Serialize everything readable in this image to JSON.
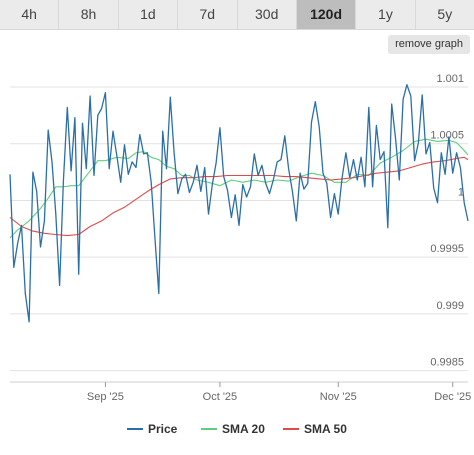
{
  "range_tabs": [
    {
      "label": "4h"
    },
    {
      "label": "8h"
    },
    {
      "label": "1d"
    },
    {
      "label": "7d"
    },
    {
      "label": "30d"
    },
    {
      "label": "120d"
    },
    {
      "label": "1y"
    },
    {
      "label": "5y"
    }
  ],
  "active_tab": "120d",
  "remove_graph_label": "remove graph",
  "chart_data": {
    "type": "line",
    "title": "",
    "xlabel": "",
    "ylabel": "",
    "ylim": [
      0.9984,
      1.00122
    ],
    "y_ticks": [
      {
        "value": 1.001,
        "label": "1.001"
      },
      {
        "value": 1.0005,
        "label": "1.0005"
      },
      {
        "value": 1.0,
        "label": "1"
      },
      {
        "value": 0.9995,
        "label": "0.9995"
      },
      {
        "value": 0.999,
        "label": "0.999"
      },
      {
        "value": 0.9985,
        "label": "0.9985"
      }
    ],
    "x_range": [
      "2025-08-07",
      "2025-12-05"
    ],
    "x_ticks": [
      {
        "date": "2025-09-01",
        "label": "Sep '25"
      },
      {
        "date": "2025-10-01",
        "label": "Oct '25"
      },
      {
        "date": "2025-11-01",
        "label": "Nov '25"
      },
      {
        "date": "2025-12-01",
        "label": "Dec '25"
      }
    ],
    "grid": true,
    "legend_position": "bottom",
    "series": [
      {
        "name": "Price",
        "color": "#2a6fa8",
        "points": [
          [
            "2025-08-07",
            1.00023
          ],
          [
            "2025-08-08",
            0.99941
          ],
          [
            "2025-08-09",
            0.99962
          ],
          [
            "2025-08-10",
            0.99978
          ],
          [
            "2025-08-11",
            0.99918
          ],
          [
            "2025-08-12",
            0.99893
          ],
          [
            "2025-08-13",
            1.00025
          ],
          [
            "2025-08-14",
            1.00008
          ],
          [
            "2025-08-15",
            0.99959
          ],
          [
            "2025-08-16",
            0.99982
          ],
          [
            "2025-08-17",
            1.00062
          ],
          [
            "2025-08-18",
            1.00034
          ],
          [
            "2025-08-19",
            0.99988
          ],
          [
            "2025-08-20",
            0.99925
          ],
          [
            "2025-08-21",
            1.00017
          ],
          [
            "2025-08-22",
            1.00082
          ],
          [
            "2025-08-23",
            1.00026
          ],
          [
            "2025-08-24",
            1.00073
          ],
          [
            "2025-08-25",
            0.99935
          ],
          [
            "2025-08-26",
            1.00068
          ],
          [
            "2025-08-27",
            1.00028
          ],
          [
            "2025-08-28",
            1.00092
          ],
          [
            "2025-08-29",
            1.00022
          ],
          [
            "2025-08-30",
            1.00075
          ],
          [
            "2025-08-31",
            1.00081
          ],
          [
            "2025-09-01",
            1.00095
          ],
          [
            "2025-09-02",
            1.00028
          ],
          [
            "2025-09-03",
            1.00061
          ],
          [
            "2025-09-04",
            1.00039
          ],
          [
            "2025-09-05",
            1.00016
          ],
          [
            "2025-09-06",
            1.00049
          ],
          [
            "2025-09-07",
            1.00023
          ],
          [
            "2025-09-08",
            1.00034
          ],
          [
            "2025-09-09",
            1.00029
          ],
          [
            "2025-09-10",
            1.00058
          ],
          [
            "2025-09-11",
            1.00041
          ],
          [
            "2025-09-12",
            1.00042
          ],
          [
            "2025-09-13",
            1.00016
          ],
          [
            "2025-09-14",
            0.99966
          ],
          [
            "2025-09-15",
            0.99918
          ],
          [
            "2025-09-16",
            1.00061
          ],
          [
            "2025-09-17",
            1.00028
          ],
          [
            "2025-09-18",
            1.00091
          ],
          [
            "2025-09-19",
            1.00042
          ],
          [
            "2025-09-20",
            1.00006
          ],
          [
            "2025-09-21",
            1.00019
          ],
          [
            "2025-09-22",
            1.00023
          ],
          [
            "2025-09-23",
            1.00007
          ],
          [
            "2025-09-24",
            1.00016
          ],
          [
            "2025-09-25",
            1.00031
          ],
          [
            "2025-09-26",
            1.00008
          ],
          [
            "2025-09-27",
            1.00029
          ],
          [
            "2025-09-28",
            0.99988
          ],
          [
            "2025-09-29",
            1.00014
          ],
          [
            "2025-09-30",
            1.00033
          ],
          [
            "2025-10-01",
            1.00064
          ],
          [
            "2025-10-02",
            1.00021
          ],
          [
            "2025-10-03",
            1.00009
          ],
          [
            "2025-10-04",
            0.99985
          ],
          [
            "2025-10-05",
            1.00005
          ],
          [
            "2025-10-06",
            0.99978
          ],
          [
            "2025-10-07",
            1.00014
          ],
          [
            "2025-10-08",
            1.00003
          ],
          [
            "2025-10-09",
            1.00012
          ],
          [
            "2025-10-10",
            1.00041
          ],
          [
            "2025-10-11",
            1.00022
          ],
          [
            "2025-10-12",
            1.00031
          ],
          [
            "2025-10-13",
            1.00015
          ],
          [
            "2025-10-14",
            1.00006
          ],
          [
            "2025-10-15",
            1.00018
          ],
          [
            "2025-10-16",
            1.00034
          ],
          [
            "2025-10-17",
            1.00036
          ],
          [
            "2025-10-18",
            1.00057
          ],
          [
            "2025-10-19",
            1.00028
          ],
          [
            "2025-10-20",
            1.00008
          ],
          [
            "2025-10-21",
            0.99982
          ],
          [
            "2025-10-22",
            1.00024
          ],
          [
            "2025-10-23",
            1.0001
          ],
          [
            "2025-10-24",
            1.00015
          ],
          [
            "2025-10-25",
            1.00069
          ],
          [
            "2025-10-26",
            1.00087
          ],
          [
            "2025-10-27",
            1.00065
          ],
          [
            "2025-10-28",
            1.00024
          ],
          [
            "2025-10-29",
            1.00015
          ],
          [
            "2025-10-30",
            0.99985
          ],
          [
            "2025-10-31",
            1.00006
          ],
          [
            "2025-11-01",
            0.99988
          ],
          [
            "2025-11-02",
            1.0002
          ],
          [
            "2025-11-03",
            1.00042
          ],
          [
            "2025-11-04",
            1.0002
          ],
          [
            "2025-11-05",
            1.00036
          ],
          [
            "2025-11-06",
            1.00018
          ],
          [
            "2025-11-07",
            1.00038
          ],
          [
            "2025-11-08",
            1.00012
          ],
          [
            "2025-11-09",
            1.00082
          ],
          [
            "2025-11-10",
            1.00012
          ],
          [
            "2025-11-11",
            1.00066
          ],
          [
            "2025-11-12",
            1.00036
          ],
          [
            "2025-11-13",
            1.00043
          ],
          [
            "2025-11-14",
            0.99976
          ],
          [
            "2025-11-15",
            1.00085
          ],
          [
            "2025-11-16",
            1.00055
          ],
          [
            "2025-11-17",
            1.00018
          ],
          [
            "2025-11-18",
            1.00089
          ],
          [
            "2025-11-19",
            1.00102
          ],
          [
            "2025-11-20",
            1.00092
          ],
          [
            "2025-11-21",
            1.00035
          ],
          [
            "2025-11-22",
            1.00051
          ],
          [
            "2025-11-23",
            1.00093
          ],
          [
            "2025-11-24",
            1.00041
          ],
          [
            "2025-11-25",
            1.00051
          ],
          [
            "2025-11-26",
            1.00011
          ],
          [
            "2025-11-27",
            0.99998
          ],
          [
            "2025-11-28",
            1.00042
          ],
          [
            "2025-11-29",
            1.00023
          ],
          [
            "2025-11-30",
            1.00056
          ],
          [
            "2025-12-01",
            1.00024
          ],
          [
            "2025-12-02",
            1.00042
          ],
          [
            "2025-12-03",
            1.00029
          ],
          [
            "2025-12-04",
            0.99998
          ],
          [
            "2025-12-05",
            0.99982
          ]
        ]
      },
      {
        "name": "SMA 20",
        "color": "#5ccf7e",
        "points": [
          [
            "2025-08-07",
            0.99967
          ],
          [
            "2025-08-09",
            0.99974
          ],
          [
            "2025-08-12",
            0.99982
          ],
          [
            "2025-08-15",
            0.99993
          ],
          [
            "2025-08-17",
            1.00002
          ],
          [
            "2025-08-19",
            1.00012
          ],
          [
            "2025-08-21",
            1.00012
          ],
          [
            "2025-08-23",
            1.00013
          ],
          [
            "2025-08-25",
            1.00013
          ],
          [
            "2025-08-28",
            1.00026
          ],
          [
            "2025-08-30",
            1.00035
          ],
          [
            "2025-09-01",
            1.00035
          ],
          [
            "2025-09-04",
            1.00038
          ],
          [
            "2025-09-07",
            1.00037
          ],
          [
            "2025-09-09",
            1.00042
          ],
          [
            "2025-09-11",
            1.00043
          ],
          [
            "2025-09-13",
            1.00038
          ],
          [
            "2025-09-15",
            1.00036
          ],
          [
            "2025-09-17",
            1.0003
          ],
          [
            "2025-09-19",
            1.00028
          ],
          [
            "2025-09-21",
            1.00022
          ],
          [
            "2025-09-23",
            1.00022
          ],
          [
            "2025-09-25",
            1.00018
          ],
          [
            "2025-09-28",
            1.00016
          ],
          [
            "2025-10-01",
            1.00013
          ],
          [
            "2025-10-04",
            1.00018
          ],
          [
            "2025-10-07",
            1.00016
          ],
          [
            "2025-10-10",
            1.00018
          ],
          [
            "2025-10-13",
            1.00016
          ],
          [
            "2025-10-16",
            1.00018
          ],
          [
            "2025-10-19",
            1.00017
          ],
          [
            "2025-10-22",
            1.00021
          ],
          [
            "2025-10-25",
            1.00024
          ],
          [
            "2025-10-28",
            1.00022
          ],
          [
            "2025-10-31",
            1.00016
          ],
          [
            "2025-11-03",
            1.00016
          ],
          [
            "2025-11-06",
            1.00023
          ],
          [
            "2025-11-09",
            1.00022
          ],
          [
            "2025-11-12",
            1.00033
          ],
          [
            "2025-11-15",
            1.00038
          ],
          [
            "2025-11-18",
            1.00044
          ],
          [
            "2025-11-21",
            1.00052
          ],
          [
            "2025-11-24",
            1.00054
          ],
          [
            "2025-11-27",
            1.00052
          ],
          [
            "2025-11-30",
            1.00053
          ],
          [
            "2025-12-02",
            1.00051
          ],
          [
            "2025-12-04",
            1.00044
          ],
          [
            "2025-12-05",
            1.0004
          ]
        ]
      },
      {
        "name": "SMA 50",
        "color": "#e04a4a",
        "points": [
          [
            "2025-08-07",
            0.99985
          ],
          [
            "2025-08-10",
            0.99977
          ],
          [
            "2025-08-13",
            0.99973
          ],
          [
            "2025-08-16",
            0.99971
          ],
          [
            "2025-08-19",
            0.9997
          ],
          [
            "2025-08-22",
            0.99969
          ],
          [
            "2025-08-25",
            0.9997
          ],
          [
            "2025-08-28",
            0.99977
          ],
          [
            "2025-08-31",
            0.99982
          ],
          [
            "2025-09-03",
            0.99989
          ],
          [
            "2025-09-06",
            0.99994
          ],
          [
            "2025-09-09",
            1.00001
          ],
          [
            "2025-09-12",
            1.00008
          ],
          [
            "2025-09-15",
            1.00014
          ],
          [
            "2025-09-18",
            1.00019
          ],
          [
            "2025-09-21",
            1.0002
          ],
          [
            "2025-09-24",
            1.0002
          ],
          [
            "2025-09-27",
            1.00021
          ],
          [
            "2025-09-30",
            1.00021
          ],
          [
            "2025-10-03",
            1.00022
          ],
          [
            "2025-10-06",
            1.00022
          ],
          [
            "2025-10-09",
            1.00022
          ],
          [
            "2025-10-12",
            1.00022
          ],
          [
            "2025-10-15",
            1.00022
          ],
          [
            "2025-10-18",
            1.00021
          ],
          [
            "2025-10-21",
            1.00021
          ],
          [
            "2025-10-24",
            1.0002
          ],
          [
            "2025-10-27",
            1.00019
          ],
          [
            "2025-10-30",
            1.00018
          ],
          [
            "2025-11-02",
            1.00019
          ],
          [
            "2025-11-05",
            1.0002
          ],
          [
            "2025-11-08",
            1.00022
          ],
          [
            "2025-11-11",
            1.00024
          ],
          [
            "2025-11-14",
            1.00025
          ],
          [
            "2025-11-17",
            1.00026
          ],
          [
            "2025-11-20",
            1.00029
          ],
          [
            "2025-11-23",
            1.00032
          ],
          [
            "2025-11-26",
            1.00034
          ],
          [
            "2025-11-29",
            1.00035
          ],
          [
            "2025-12-02",
            1.00037
          ],
          [
            "2025-12-04",
            1.00038
          ],
          [
            "2025-12-05",
            1.00036
          ]
        ]
      }
    ]
  }
}
